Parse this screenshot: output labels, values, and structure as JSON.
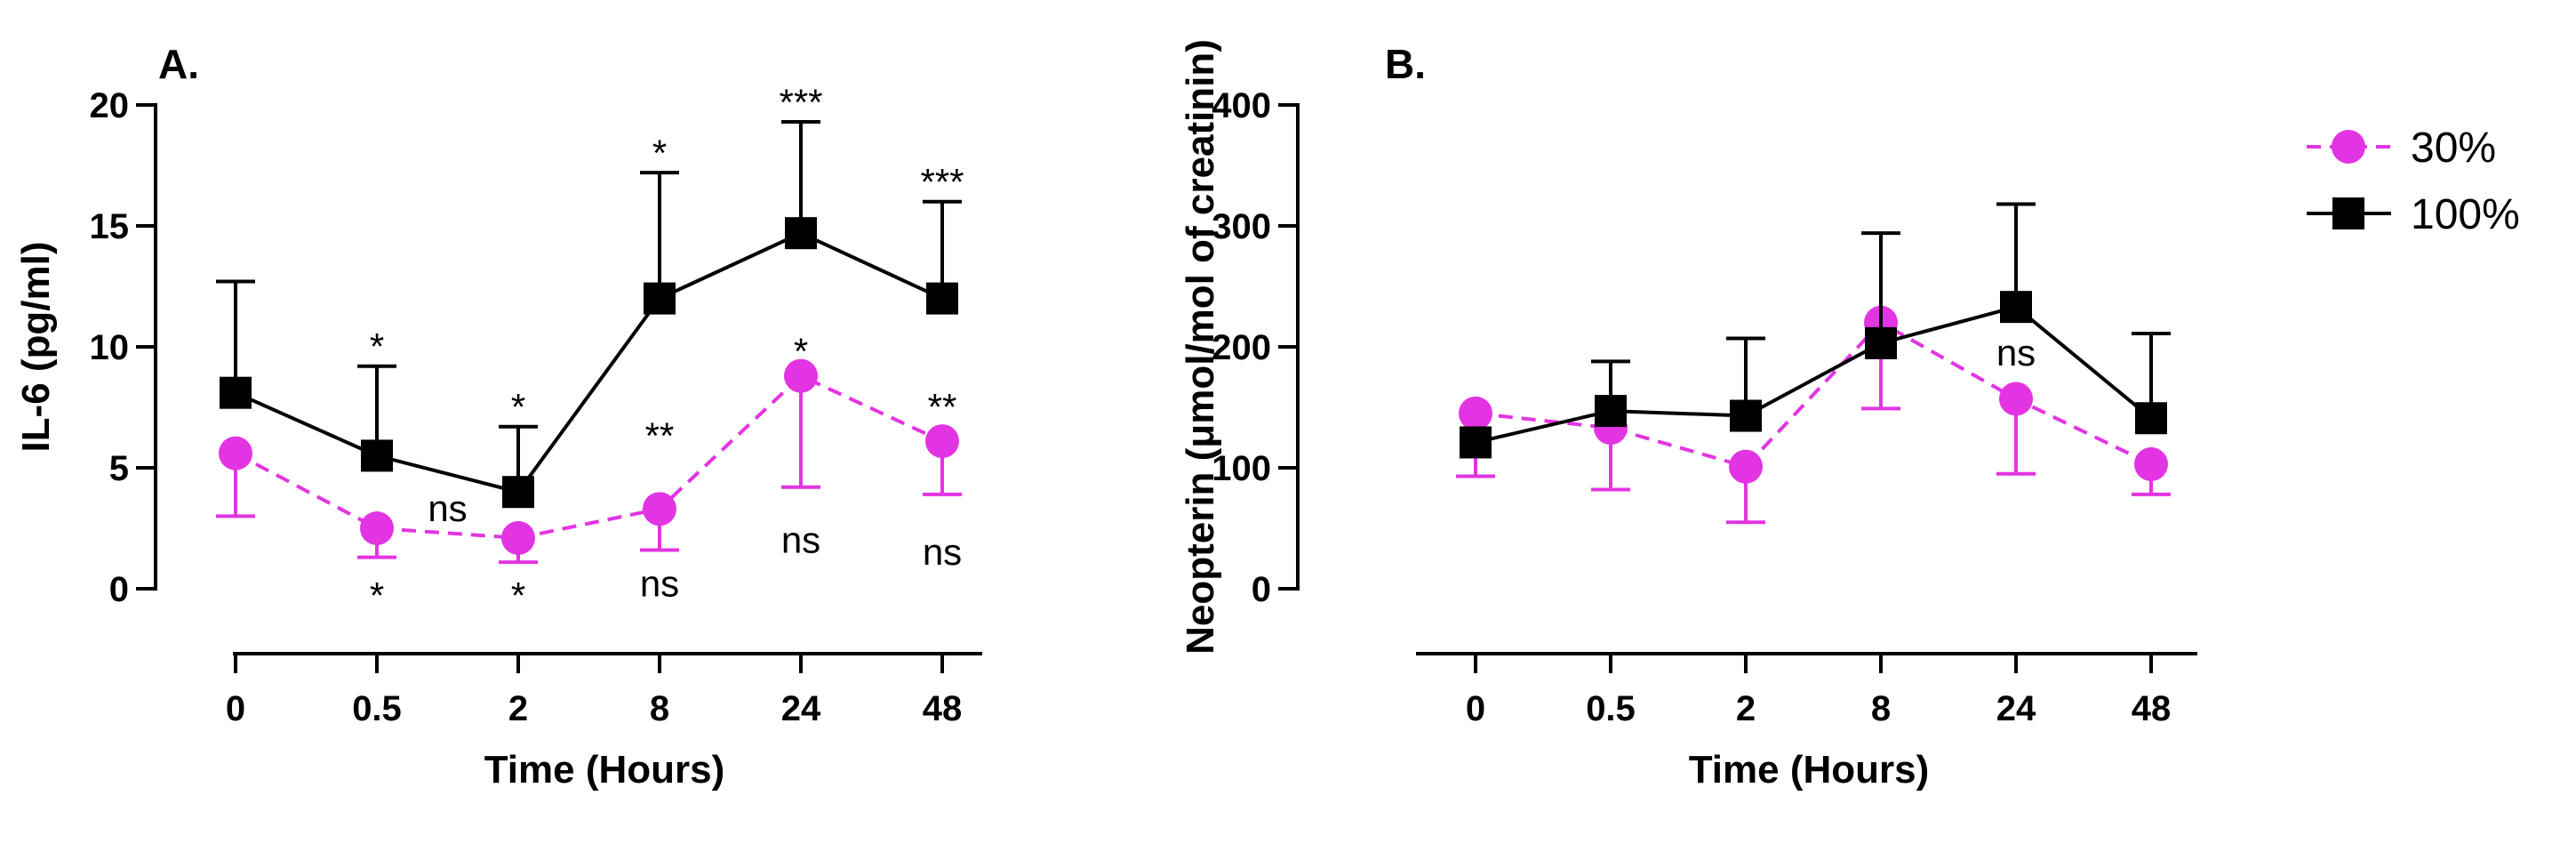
{
  "charts": [
    {
      "panel_label": "A.",
      "ylabel": "IL-6 (pg/ml)",
      "xlabel": "Time (Hours)",
      "categories": [
        "0",
        "0.5",
        "2",
        "8",
        "24",
        "48"
      ],
      "ylim": [
        0,
        20
      ],
      "yticks": [
        0,
        5,
        10,
        15,
        20
      ],
      "series": [
        {
          "name": "30%",
          "color": "#e234e2",
          "marker": "circle",
          "line": "dashed",
          "values": [
            5.6,
            2.5,
            2.1,
            3.3,
            8.8,
            6.1
          ],
          "err_down": [
            2.6,
            1.2,
            1.0,
            1.7,
            4.6,
            2.2
          ]
        },
        {
          "name": "100%",
          "color": "#000000",
          "marker": "square",
          "line": "solid",
          "values": [
            8.1,
            5.5,
            4.0,
            12.0,
            14.7,
            12.0
          ],
          "err_up": [
            4.6,
            3.7,
            2.7,
            5.2,
            4.6,
            4.0
          ]
        }
      ],
      "annotations": [
        {
          "cat": 1,
          "y": 10.0,
          "text": "*"
        },
        {
          "cat": 1,
          "y": -0.3,
          "text": "*"
        },
        {
          "cat": 2,
          "y": 7.5,
          "text": "*"
        },
        {
          "cat": 2,
          "y": -0.3,
          "text": "*"
        },
        {
          "cat": 1.5,
          "y": 3.3,
          "text": "ns"
        },
        {
          "cat": 3,
          "y": 18.0,
          "text": "*"
        },
        {
          "cat": 3,
          "y": 6.3,
          "text": "**"
        },
        {
          "cat": 3,
          "y": 0.2,
          "text": "ns"
        },
        {
          "cat": 4,
          "y": 20.1,
          "text": "***"
        },
        {
          "cat": 4,
          "y": 9.8,
          "text": "*"
        },
        {
          "cat": 4,
          "y": 2.0,
          "text": "ns"
        },
        {
          "cat": 5,
          "y": 16.8,
          "text": "***"
        },
        {
          "cat": 5,
          "y": 7.5,
          "text": "**"
        },
        {
          "cat": 5,
          "y": 1.5,
          "text": "ns"
        }
      ]
    },
    {
      "panel_label": "B.",
      "ylabel": "Neopterin (μmol/mol of creatinin)",
      "xlabel": "Time (Hours)",
      "categories": [
        "0",
        "0.5",
        "2",
        "8",
        "24",
        "48"
      ],
      "ylim": [
        0,
        400
      ],
      "yticks": [
        0,
        100,
        200,
        300,
        400
      ],
      "series": [
        {
          "name": "30%",
          "color": "#e234e2",
          "marker": "circle",
          "line": "dashed",
          "values": [
            145,
            133,
            101,
            220,
            157,
            103
          ],
          "err_down": [
            52,
            51,
            46,
            71,
            62,
            25
          ]
        },
        {
          "name": "100%",
          "color": "#000000",
          "marker": "square",
          "line": "solid",
          "values": [
            121,
            147,
            143,
            203,
            233,
            141
          ],
          "err_up": [
            0,
            41,
            64,
            91,
            85,
            70
          ]
        }
      ],
      "annotations": [
        {
          "cat": 4,
          "y": 195,
          "text": "ns"
        }
      ]
    }
  ],
  "legend": [
    {
      "label": "30%",
      "color": "#e234e2",
      "marker": "circle",
      "line": "dashed"
    },
    {
      "label": "100%",
      "color": "#000000",
      "marker": "square",
      "line": "solid"
    }
  ]
}
